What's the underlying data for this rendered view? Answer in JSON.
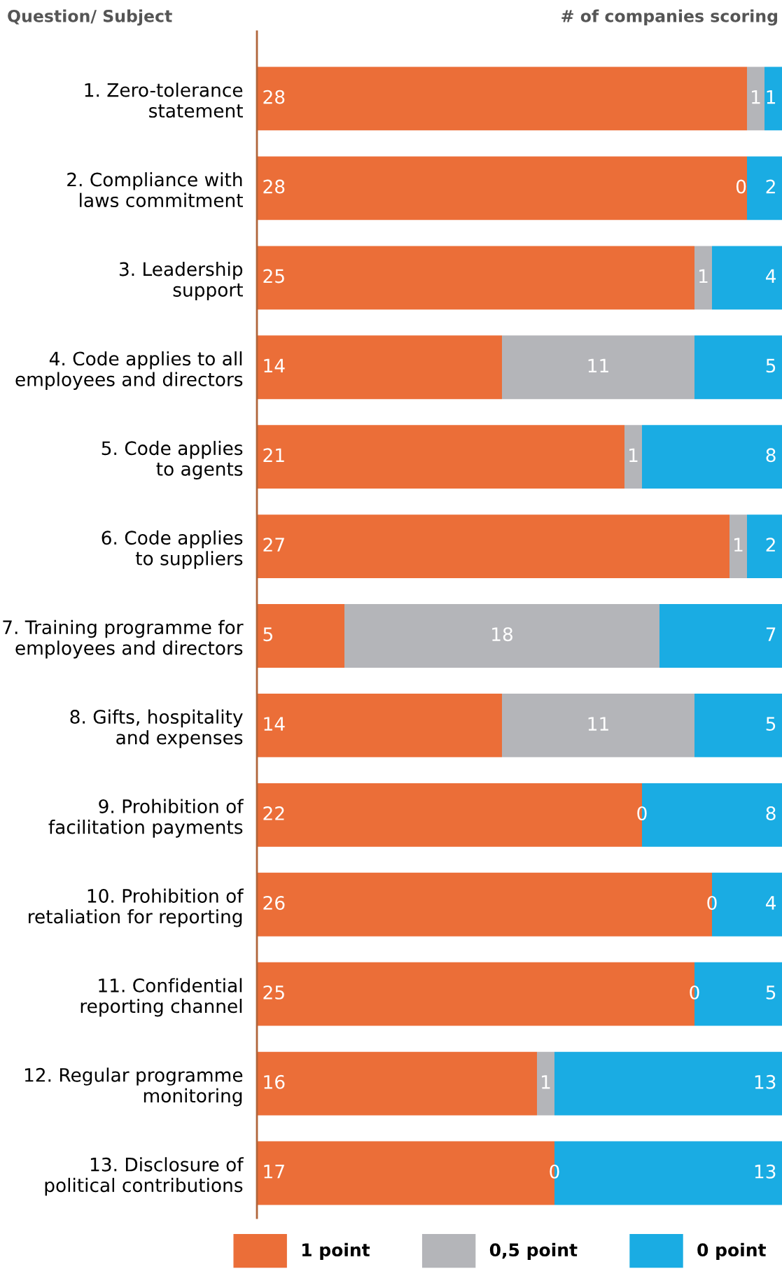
{
  "chart_data": {
    "type": "bar",
    "orientation": "horizontal",
    "stacked": true,
    "ylabel": "Question/ Subject",
    "xlabel": "# of companies scoring",
    "categories": [
      "1. Zero-tolerance\nstatement",
      "2. Compliance with\nlaws commitment",
      "3. Leadership\nsupport",
      "4. Code applies to all\nemployees and directors",
      "5. Code applies\nto agents",
      "6. Code applies\nto suppliers",
      "7. Training programme for\nemployees and directors",
      "8. Gifts, hospitality\nand expenses",
      "9. Prohibition of\nfacilitation payments",
      "10. Prohibition of\nretaliation for reporting",
      "11. Confidential\nreporting channel",
      "12. Regular programme\nmonitoring",
      "13. Disclosure of\npolitical contributions"
    ],
    "series": [
      {
        "name": "1 point",
        "color": "#eb6e38",
        "values": [
          28,
          28,
          25,
          14,
          21,
          27,
          5,
          14,
          22,
          26,
          25,
          16,
          17
        ],
        "value_labels": [
          "28",
          "28",
          "25",
          "14",
          "21",
          "27",
          "5",
          "14",
          "22",
          "26",
          "25",
          "16",
          "17"
        ]
      },
      {
        "name": "0,5 point",
        "color": "#b4b5b9",
        "values": [
          1,
          0,
          1,
          11,
          1,
          1,
          18,
          11,
          0,
          0,
          0,
          1,
          0
        ],
        "value_labels": [
          "1",
          "0",
          "1",
          "11",
          "1",
          "1",
          "18",
          "11",
          null,
          null,
          null,
          "1",
          null
        ]
      },
      {
        "name": "0 point",
        "color": "#1aace3",
        "values": [
          1,
          2,
          4,
          5,
          8,
          2,
          7,
          5,
          8,
          4,
          5,
          13,
          13
        ],
        "value_labels": [
          "1",
          "2",
          "4",
          "5",
          "8",
          "2",
          "7",
          "5",
          "8",
          "4",
          "5",
          "13",
          "13"
        ]
      }
    ],
    "annotations": [
      {
        "text": "0",
        "x": 22,
        "y": "9. Prohibition of\nfacilitation payments"
      },
      {
        "text": "0",
        "x": 26,
        "y": "10. Prohibition of\nretaliation for reporting"
      },
      {
        "text": "0",
        "x": 25,
        "y": "11. Confidential\nreporting channel"
      },
      {
        "text": "0",
        "x": 17,
        "y": "13. Disclosure of\npolitical contributions"
      }
    ],
    "xlim": [
      0,
      30
    ],
    "tick_labels": "y",
    "grid": false,
    "legend": "bottom right"
  }
}
